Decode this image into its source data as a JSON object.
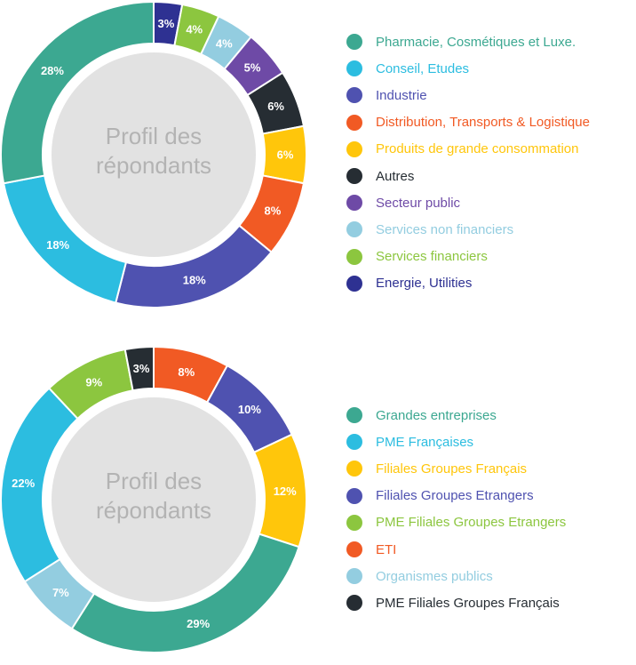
{
  "chart_data": [
    {
      "type": "pie",
      "center_title": [
        "Profil des",
        "répondants"
      ],
      "unit": "%",
      "slices": [
        {
          "label": "Energie, Utilities",
          "value": 3,
          "color": "#2e3192"
        },
        {
          "label": "Services financiers",
          "value": 4,
          "color": "#8cc63f"
        },
        {
          "label": "Services non financiers",
          "value": 4,
          "color": "#93cde0"
        },
        {
          "label": "Secteur public",
          "value": 5,
          "color": "#6e4aa6"
        },
        {
          "label": "Autres",
          "value": 6,
          "color": "#262d33"
        },
        {
          "label": "Produits de grande consommation",
          "value": 6,
          "color": "#ffc60b"
        },
        {
          "label": "Distribution, Transports & Logistique",
          "value": 8,
          "color": "#f15a24"
        },
        {
          "label": "Industrie",
          "value": 18,
          "color": "#4f52b0"
        },
        {
          "label": "Conseil, Etudes",
          "value": 18,
          "color": "#2cbde0"
        },
        {
          "label": "Pharmacie, Cosmétiques et Luxe.",
          "value": 28,
          "color": "#3ca891"
        }
      ],
      "legend": [
        {
          "label": "Pharmacie, Cosmétiques et Luxe.",
          "color": "#3ca891"
        },
        {
          "label": "Conseil, Etudes",
          "color": "#2cbde0"
        },
        {
          "label": "Industrie",
          "color": "#4f52b0"
        },
        {
          "label": "Distribution, Transports & Logistique",
          "color": "#f15a24"
        },
        {
          "label": "Produits de grande consommation",
          "color": "#ffc60b"
        },
        {
          "label": "Autres",
          "color": "#262d33"
        },
        {
          "label": "Secteur public",
          "color": "#6e4aa6"
        },
        {
          "label": "Services non financiers",
          "color": "#93cde0"
        },
        {
          "label": "Services financiers",
          "color": "#8cc63f"
        },
        {
          "label": "Energie, Utilities",
          "color": "#2e3192"
        }
      ]
    },
    {
      "type": "pie",
      "center_title": [
        "Profil des",
        "répondants"
      ],
      "unit": "%",
      "slices": [
        {
          "label": "ETI",
          "value": 8,
          "color": "#f15a24"
        },
        {
          "label": "Filiales Groupes Etrangers",
          "value": 10,
          "color": "#4f52b0"
        },
        {
          "label": "Filiales Groupes Français",
          "value": 12,
          "color": "#ffc60b"
        },
        {
          "label": "Grandes entreprises",
          "value": 29,
          "color": "#3ca891"
        },
        {
          "label": "Organismes publics",
          "value": 7,
          "color": "#93cde0"
        },
        {
          "label": "PME Françaises",
          "value": 22,
          "color": "#2cbde0"
        },
        {
          "label": "PME Filiales Groupes Etrangers",
          "value": 9,
          "color": "#8cc63f"
        },
        {
          "label": "PME Filiales Groupes Français",
          "value": 3,
          "color": "#262d33"
        }
      ],
      "legend": [
        {
          "label": "Grandes entreprises",
          "color": "#3ca891"
        },
        {
          "label": "PME Françaises",
          "color": "#2cbde0"
        },
        {
          "label": "Filiales Groupes Français",
          "color": "#ffc60b"
        },
        {
          "label": "Filiales Groupes Etrangers",
          "color": "#4f52b0"
        },
        {
          "label": "PME Filiales Groupes Etrangers",
          "color": "#8cc63f"
        },
        {
          "label": "ETI",
          "color": "#f15a24"
        },
        {
          "label": "Organismes publics",
          "color": "#93cde0"
        },
        {
          "label": "PME Filiales Groupes Français",
          "color": "#262d33"
        }
      ]
    }
  ]
}
